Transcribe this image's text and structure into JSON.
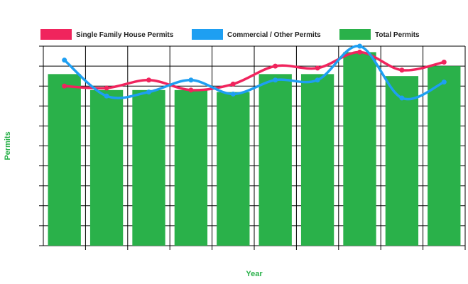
{
  "chart_data": {
    "type": "bar",
    "title": "",
    "xlabel": "Year",
    "ylabel": "Permits",
    "categories": [
      "",
      "",
      "",
      "",
      "",
      "",
      "",
      "",
      "",
      ""
    ],
    "ylim": [
      0,
      10
    ],
    "grid": true,
    "legend_position": "top",
    "series": [
      {
        "name": "Single Family House Permits",
        "kind": "line",
        "color": "#f0245d",
        "values": [
          8.0,
          7.9,
          8.3,
          7.8,
          8.1,
          9.0,
          8.9,
          9.7,
          8.8,
          9.2
        ]
      },
      {
        "name": "Commercial / Other Permits",
        "kind": "line",
        "color": "#1e9ff2",
        "values": [
          9.3,
          7.5,
          7.7,
          8.3,
          7.6,
          8.3,
          8.3,
          10.0,
          7.4,
          8.2
        ]
      },
      {
        "name": "Total Permits",
        "kind": "bar",
        "color": "#2ab14a",
        "values": [
          8.6,
          7.8,
          7.8,
          7.8,
          7.7,
          8.6,
          8.6,
          9.7,
          8.5,
          9.0
        ]
      }
    ]
  },
  "colors": {
    "grid": "#000000",
    "axis_title": "#2ab14a"
  }
}
